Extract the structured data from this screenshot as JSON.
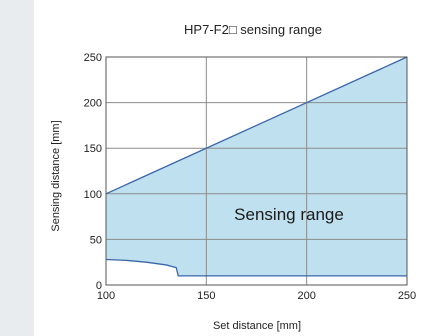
{
  "chart_data": {
    "type": "area",
    "title": "HP7-F2□ sensing range",
    "xlabel": "Set distance [mm]",
    "ylabel": "Sensing distance [mm]",
    "xlim": [
      100,
      250
    ],
    "ylim": [
      0,
      250
    ],
    "xticks": [
      "100",
      "150",
      "200",
      "250"
    ],
    "yticks": [
      "0",
      "50",
      "100",
      "150",
      "200",
      "250"
    ],
    "grid": true,
    "region_label": "Sensing range",
    "series": [
      {
        "x": [
          100,
          250
        ],
        "values": [
          100,
          250
        ]
      },
      {
        "x": [
          100,
          110,
          120,
          130,
          135,
          136,
          250
        ],
        "values": [
          28,
          27,
          25,
          22,
          19,
          10,
          10
        ]
      }
    ],
    "colors": {
      "fill": "#bfe0ef",
      "line": "#3a66a8",
      "grid": "#8c8c8c",
      "frame": "#555555"
    }
  }
}
